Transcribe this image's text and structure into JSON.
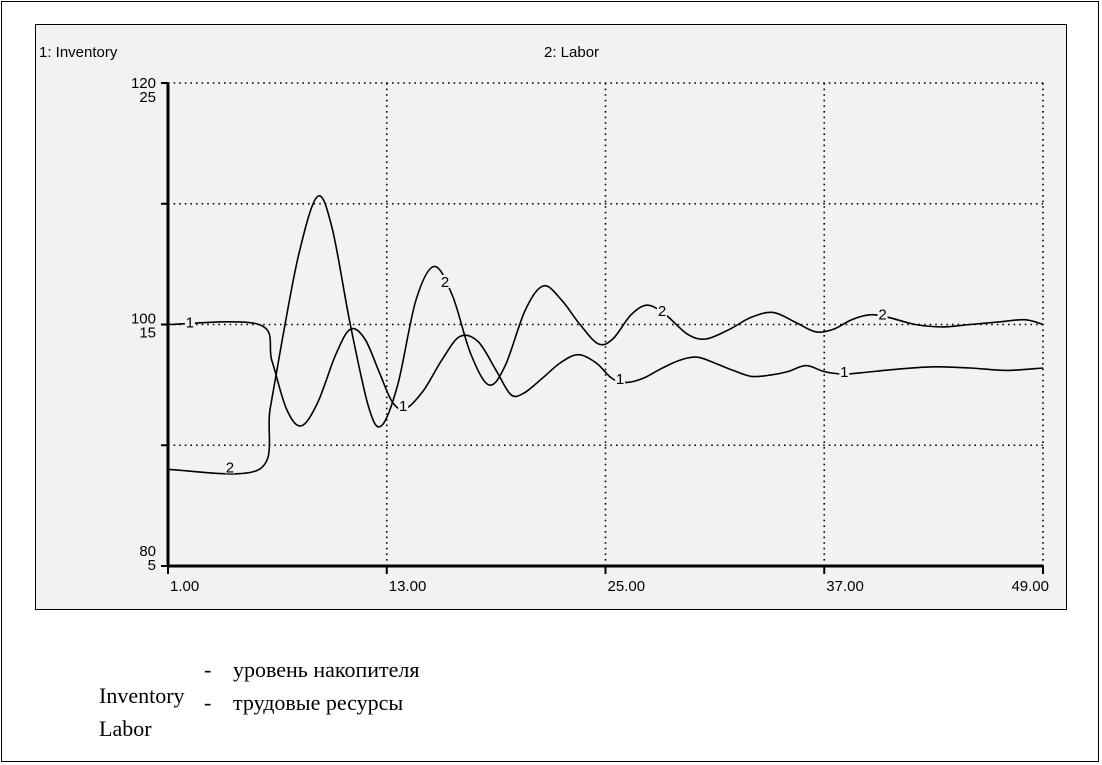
{
  "chart_data": {
    "type": "line",
    "series_label_1": "1: Inventory",
    "series_label_2": "2: Labor",
    "x_ticks": [
      "1.00",
      "13.00",
      "25.00",
      "37.00",
      "49.00"
    ],
    "xlim": [
      1,
      49
    ],
    "axis_1": {
      "max_label": "120",
      "mid_label": "100",
      "min_label": "80",
      "ylim": [
        80,
        120
      ]
    },
    "axis_2": {
      "max_label": "25",
      "mid_label": "15",
      "min_label": "5",
      "ylim": [
        5,
        25
      ]
    },
    "grid": true,
    "series": [
      {
        "name": "Inventory",
        "marker": "1",
        "color": "#000000",
        "points": [
          [
            1,
            100
          ],
          [
            6,
            100
          ],
          [
            6.7,
            97
          ],
          [
            7.5,
            93
          ],
          [
            8.3,
            91.6
          ],
          [
            9.2,
            93.5
          ],
          [
            10.2,
            97.5
          ],
          [
            11,
            99.6
          ],
          [
            11.8,
            98.8
          ],
          [
            12.6,
            96
          ],
          [
            13.3,
            93.6
          ],
          [
            14,
            93
          ],
          [
            15,
            94.5
          ],
          [
            16,
            97
          ],
          [
            17,
            99
          ],
          [
            18,
            98.6
          ],
          [
            19,
            96.2
          ],
          [
            19.8,
            94.2
          ],
          [
            20.5,
            94.3
          ],
          [
            21.5,
            95.5
          ],
          [
            22.5,
            96.8
          ],
          [
            23.5,
            97.5
          ],
          [
            24.5,
            96.8
          ],
          [
            25.3,
            95.6
          ],
          [
            26,
            95.2
          ],
          [
            27,
            95.5
          ],
          [
            28,
            96.3
          ],
          [
            29,
            97
          ],
          [
            30,
            97.3
          ],
          [
            31,
            96.8
          ],
          [
            32,
            96.2
          ],
          [
            33,
            95.7
          ],
          [
            34,
            95.8
          ],
          [
            35,
            96.1
          ],
          [
            36,
            96.6
          ],
          [
            37,
            96.1
          ],
          [
            38,
            95.9
          ],
          [
            39,
            96
          ],
          [
            41,
            96.3
          ],
          [
            43,
            96.5
          ],
          [
            45,
            96.4
          ],
          [
            47,
            96.2
          ],
          [
            49,
            96.4
          ]
        ]
      },
      {
        "name": "Labor",
        "marker": "2",
        "color": "#000000",
        "points": [
          [
            1,
            9
          ],
          [
            6,
            9
          ],
          [
            6.6,
            11.5
          ],
          [
            7.3,
            14.5
          ],
          [
            8.2,
            18
          ],
          [
            9.2,
            20.3
          ],
          [
            10,
            19
          ],
          [
            11,
            15
          ],
          [
            12,
            11.6
          ],
          [
            12.7,
            10.8
          ],
          [
            13.6,
            12.5
          ],
          [
            14.6,
            16
          ],
          [
            15.6,
            17.4
          ],
          [
            16.6,
            16.2
          ],
          [
            17.6,
            13.8
          ],
          [
            18.6,
            12.5
          ],
          [
            19.5,
            13.3
          ],
          [
            20.6,
            15.6
          ],
          [
            21.6,
            16.6
          ],
          [
            22.6,
            16
          ],
          [
            23.6,
            15
          ],
          [
            24.6,
            14.2
          ],
          [
            25.4,
            14.4
          ],
          [
            26.4,
            15.4
          ],
          [
            27.3,
            15.8
          ],
          [
            28.3,
            15.4
          ],
          [
            29.5,
            14.6
          ],
          [
            30.5,
            14.4
          ],
          [
            31.8,
            14.8
          ],
          [
            33,
            15.3
          ],
          [
            34.2,
            15.5
          ],
          [
            35.4,
            15.1
          ],
          [
            36.5,
            14.7
          ],
          [
            37.5,
            14.8
          ],
          [
            38.5,
            15.2
          ],
          [
            39.5,
            15.4
          ],
          [
            40.5,
            15.3
          ],
          [
            42,
            15
          ],
          [
            43.5,
            14.9
          ],
          [
            45,
            15
          ],
          [
            46.5,
            15.1
          ],
          [
            48,
            15.2
          ],
          [
            49,
            15
          ]
        ]
      }
    ]
  },
  "legend": {
    "rows": [
      {
        "term": "Inventory",
        "dash": "-",
        "desc": "уровень накопителя"
      },
      {
        "term": "Labor",
        "dash": "-",
        "desc": "трудовые ресурсы"
      }
    ]
  }
}
